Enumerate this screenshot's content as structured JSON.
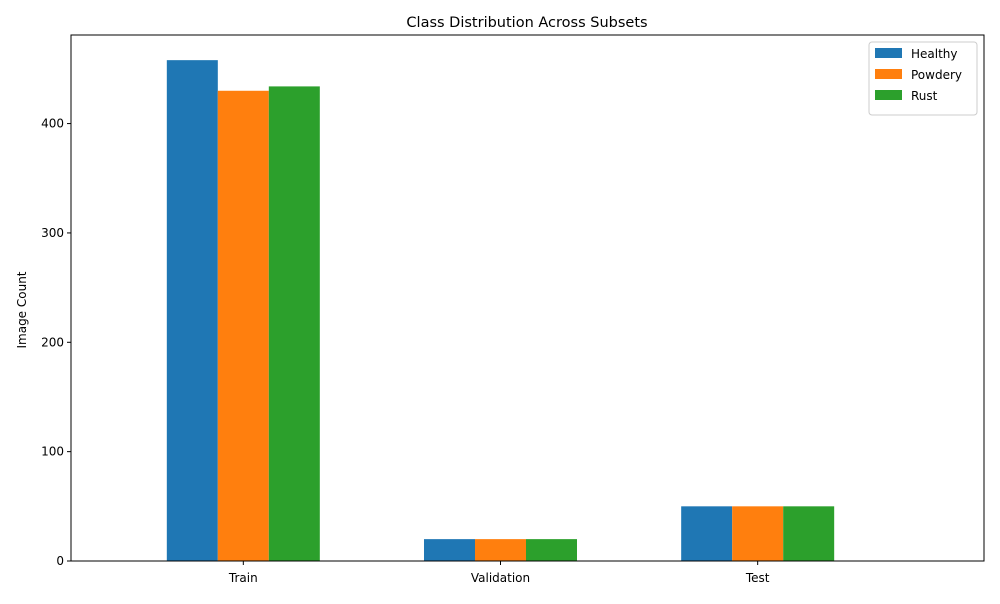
{
  "chart_data": {
    "type": "bar",
    "title": "Class Distribution Across Subsets",
    "xlabel": "",
    "ylabel": "Image Count",
    "categories": [
      "Train",
      "Validation",
      "Test"
    ],
    "series": [
      {
        "name": "Healthy",
        "values": [
          458,
          20,
          50
        ],
        "color": "#1f77b4"
      },
      {
        "name": "Powdery",
        "values": [
          430,
          20,
          50
        ],
        "color": "#ff7f0e"
      },
      {
        "name": "Rust",
        "values": [
          434,
          20,
          50
        ],
        "color": "#2ca02c"
      }
    ],
    "ylim": [
      0,
      481
    ],
    "yticks": [
      0,
      100,
      200,
      300,
      400
    ],
    "grid": false,
    "legend_position": "top-right"
  }
}
